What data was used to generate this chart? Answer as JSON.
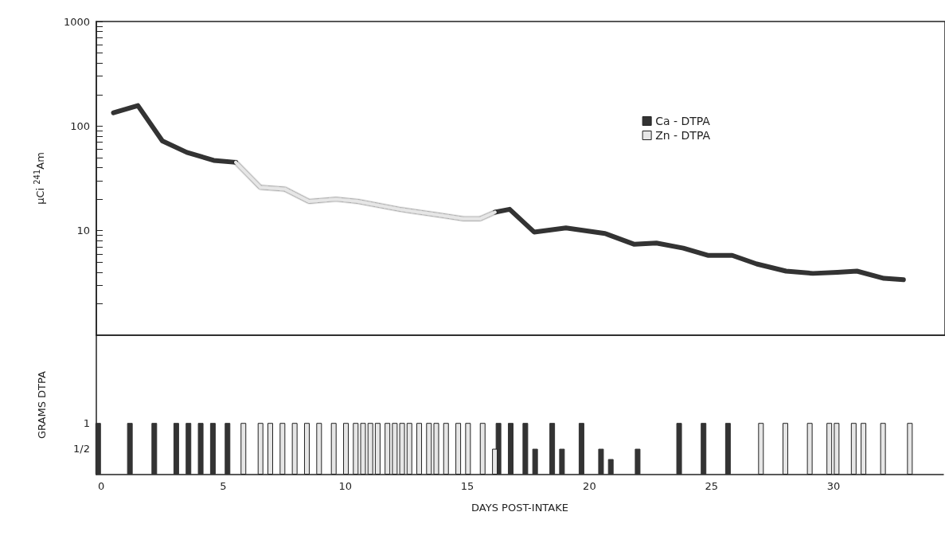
{
  "chart_data": [
    {
      "type": "line",
      "ylabel": "μCi $^{241}$Am",
      "log": "y",
      "xlim": [
        -0.2,
        34.5
      ],
      "ylim": [
        1,
        1000
      ],
      "yticks": [
        {
          "value": 2,
          "label": null
        },
        {
          "value": 3,
          "label": null
        },
        {
          "value": 4,
          "label": null
        },
        {
          "value": 5,
          "label": null
        },
        {
          "value": 6,
          "label": null
        },
        {
          "value": 7,
          "label": null
        },
        {
          "value": 8,
          "label": null
        },
        {
          "value": 9,
          "label": null
        },
        10,
        {
          "value": 20,
          "label": null
        },
        {
          "value": 30,
          "label": null
        },
        {
          "value": 40,
          "label": null
        },
        {
          "value": 50,
          "label": null
        },
        {
          "value": 60,
          "label": null
        },
        {
          "value": 70,
          "label": null
        },
        {
          "value": 80,
          "label": null
        },
        {
          "value": 90,
          "label": null
        },
        100,
        {
          "value": 200,
          "label": null
        },
        {
          "value": 300,
          "label": null
        },
        {
          "value": 400,
          "label": null
        },
        {
          "value": 500,
          "label": null
        },
        {
          "value": 600,
          "label": null
        },
        {
          "value": 700,
          "label": null
        },
        {
          "value": 800,
          "label": null
        },
        {
          "value": 900,
          "label": null
        },
        1000
      ],
      "tick_labels": "y",
      "grid": false,
      "legend": "top right",
      "series": [
        {
          "name": "Ca - DTPA",
          "color": "#333333",
          "x": [
            0.5,
            1.5,
            2.5,
            3.5,
            4.6,
            5.5,
            11,
            16.1,
            16.7,
            17.7,
            19.0,
            20.6,
            21.8,
            22.7,
            23.8,
            24.8,
            25.8,
            26.8,
            28.0,
            29.1,
            30.1,
            30.9,
            32.0,
            32.8
          ],
          "values": [
            134,
            157,
            72,
            56,
            47,
            45,
            null,
            15,
            16,
            9.7,
            10.6,
            9.4,
            7.4,
            7.6,
            6.8,
            5.8,
            5.8,
            4.8,
            4.1,
            3.9,
            4.0,
            4.1,
            3.5,
            3.4
          ]
        },
        {
          "name": "Zn - DTPA",
          "color": "#e6e6e6",
          "x": [
            5.5,
            6.5,
            7.5,
            8.5,
            9.6,
            10.5,
            12.2,
            13.9,
            14.8,
            15.5,
            16.1
          ],
          "values": [
            45,
            26,
            25,
            19,
            20,
            19,
            16,
            14,
            13,
            13,
            15
          ]
        }
      ]
    },
    {
      "type": "bar",
      "xlabel": "DAYS POST-INTAKE",
      "ylabel": "GRAMS DTPA",
      "xlim": [
        -0.2,
        34.5
      ],
      "xticks": [
        0,
        5,
        10,
        15,
        20,
        25,
        30
      ],
      "ylim": [
        0,
        2.7
      ],
      "yticks": [
        {
          "value": 0.5,
          "label": "1/2"
        },
        1
      ],
      "grid": false,
      "legend": false,
      "series": [
        {
          "color": "#333333",
          "x": [
            0.0,
            1.3,
            2.3,
            3.2,
            3.7,
            4.2,
            4.7,
            5.3,
            16.4,
            16.9,
            17.5,
            17.9,
            18.6,
            19.0,
            19.8,
            20.6,
            21.0,
            22.1,
            23.8,
            24.8,
            25.8
          ],
          "values": [
            1,
            1,
            1,
            1,
            1,
            1,
            1,
            1,
            1,
            1,
            1,
            0.5,
            1,
            0.5,
            1,
            0.5,
            0.3,
            0.5,
            1,
            1,
            1
          ]
        },
        {
          "color": "#e6e6e6",
          "x": [
            5.7,
            6.4,
            6.8,
            7.3,
            7.8,
            8.3,
            8.8,
            9.4,
            9.9,
            10.3,
            10.6,
            10.9,
            11.2,
            11.6,
            11.9,
            12.2,
            12.5,
            12.9,
            13.3,
            13.6,
            14.0,
            14.5,
            14.9,
            15.5,
            16.0,
            26.9,
            27.9,
            28.9,
            29.7,
            30.0,
            30.7,
            31.1,
            31.9,
            33.0
          ],
          "values": [
            1,
            1,
            1,
            1,
            1,
            1,
            1,
            1,
            1,
            1,
            1,
            1,
            1,
            1,
            1,
            1,
            1,
            1,
            1,
            1,
            1,
            1,
            1,
            1,
            0.5,
            1,
            1,
            1,
            1,
            1,
            1,
            1,
            1,
            1
          ]
        }
      ]
    }
  ]
}
